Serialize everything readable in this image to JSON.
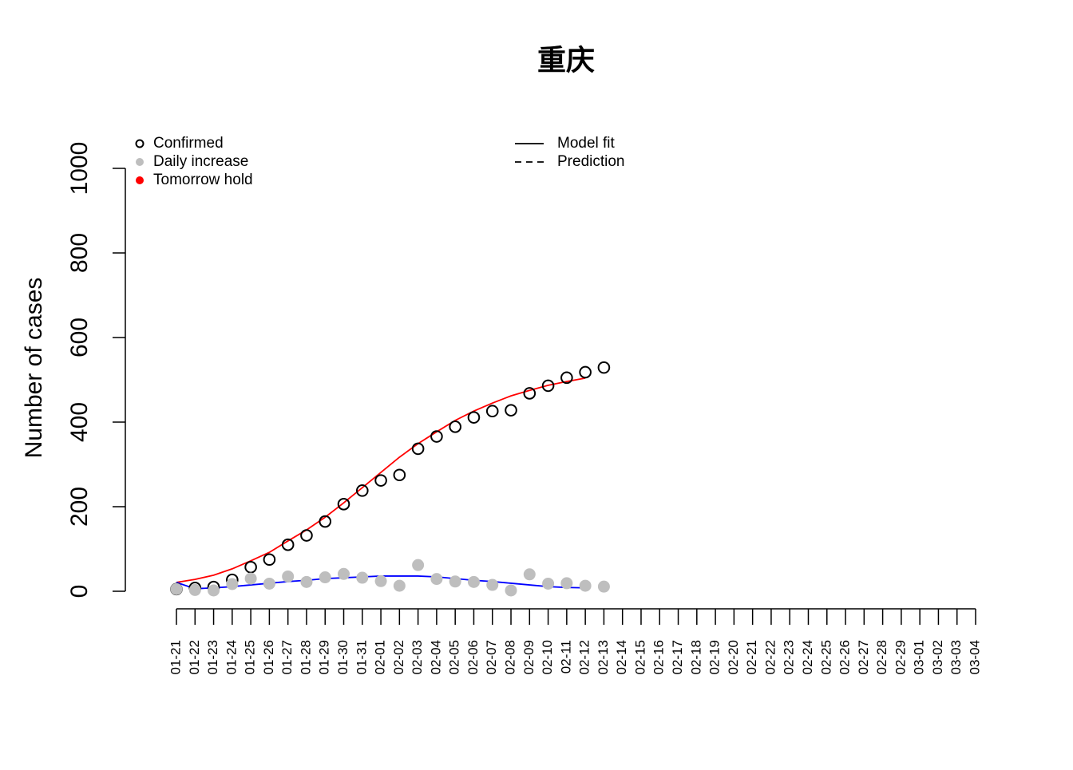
{
  "chart_data": {
    "type": "scatter",
    "title": "重庆",
    "ylabel": "Number of cases",
    "categories": [
      "01-21",
      "01-22",
      "01-23",
      "01-24",
      "01-25",
      "01-26",
      "01-27",
      "01-28",
      "01-29",
      "01-30",
      "01-31",
      "02-01",
      "02-02",
      "02-03",
      "02-04",
      "02-05",
      "02-06",
      "02-07",
      "02-08",
      "02-09",
      "02-10",
      "02-11",
      "02-12",
      "02-13",
      "02-14",
      "02-15",
      "02-16",
      "02-17",
      "02-18",
      "02-19",
      "02-20",
      "02-21",
      "02-22",
      "02-23",
      "02-24",
      "02-25",
      "02-26",
      "02-27",
      "02-28",
      "02-29",
      "03-01",
      "03-02",
      "03-03",
      "03-04"
    ],
    "ylim": [
      0,
      1000
    ],
    "yticks": [
      0,
      200,
      400,
      600,
      800,
      1000
    ],
    "series": [
      {
        "name": "Confirmed",
        "color": "#000000",
        "marker": "open",
        "values": [
          5,
          8,
          10,
          27,
          57,
          75,
          110,
          132,
          165,
          206,
          238,
          262,
          275,
          337,
          366,
          389,
          411,
          426,
          428,
          468,
          486,
          505,
          518,
          529,
          null,
          null,
          null,
          null,
          null,
          null,
          null,
          null,
          null,
          null,
          null,
          null,
          null,
          null,
          null,
          null,
          null,
          null,
          null,
          null
        ]
      },
      {
        "name": "Daily increase",
        "color": "#bebebe",
        "marker": "filled",
        "values": [
          5,
          3,
          2,
          17,
          30,
          18,
          35,
          22,
          33,
          41,
          32,
          24,
          13,
          62,
          29,
          23,
          22,
          15,
          2,
          40,
          18,
          19,
          13,
          11,
          null,
          null,
          null,
          null,
          null,
          null,
          null,
          null,
          null,
          null,
          null,
          null,
          null,
          null,
          null,
          null,
          null,
          null,
          null,
          null
        ]
      },
      {
        "name": "Tomorrow hold",
        "color": "#ff0000",
        "marker": "filled",
        "values": [
          null,
          null,
          null,
          null,
          null,
          null,
          null,
          null,
          null,
          null,
          null,
          null,
          null,
          null,
          null,
          null,
          null,
          null,
          null,
          null,
          null,
          null,
          null,
          null,
          null,
          null,
          null,
          null,
          null,
          null,
          null,
          null,
          null,
          null,
          null,
          null,
          null,
          null,
          null,
          null,
          null,
          null,
          null,
          null
        ]
      }
    ],
    "lines": [
      {
        "color": "#ff0000",
        "values": [
          21,
          28,
          38,
          53,
          72,
          92,
          119,
          145,
          175,
          209,
          245,
          281,
          317,
          349,
          377,
          404,
          426,
          445,
          462,
          475,
          487,
          496,
          504,
          null,
          null,
          null,
          null,
          null,
          null,
          null,
          null,
          null,
          null,
          null,
          null,
          null,
          null,
          null,
          null,
          null,
          null,
          null,
          null,
          null
        ]
      },
      {
        "color": "#0000ff",
        "values": [
          21,
          6,
          8,
          11,
          15,
          19,
          23,
          26,
          30,
          32,
          34,
          36,
          36,
          36,
          34,
          30,
          26,
          23,
          19,
          15,
          11,
          9,
          8,
          null,
          null,
          null,
          null,
          null,
          null,
          null,
          null,
          null,
          null,
          null,
          null,
          null,
          null,
          null,
          null,
          null,
          null,
          null,
          null,
          null
        ]
      }
    ],
    "line_legend": [
      {
        "name": "Model fit",
        "dash": "none"
      },
      {
        "name": "Prediction",
        "dash": "8,6"
      }
    ]
  }
}
